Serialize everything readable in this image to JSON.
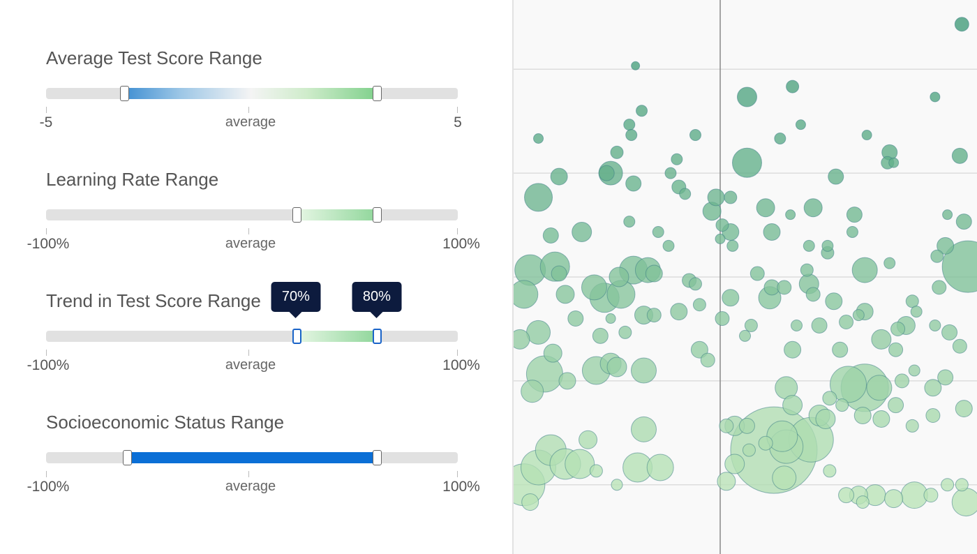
{
  "controls": {
    "score": {
      "title": "Average Test Score Range",
      "axis": [
        "-5",
        "average",
        "5"
      ],
      "range": [
        -3.1,
        3.05
      ]
    },
    "learning": {
      "title": "Learning Rate Range",
      "axis": [
        "-100%",
        "average",
        "100%"
      ],
      "range": [
        22,
        61
      ]
    },
    "trend": {
      "title": "Trend in Test Score Range",
      "axis": [
        "-100%",
        "average",
        "100%"
      ],
      "range": [
        22,
        61
      ],
      "tooltip_low": "70%",
      "tooltip_high": "80%"
    },
    "ses": {
      "title": "Socioeconomic Status Range",
      "axis": [
        "-100%",
        "average",
        "100%"
      ],
      "range": [
        -60.5,
        61
      ]
    }
  },
  "colors": {
    "track": "#e1e1e1",
    "ses_fill": "#0b6fd6",
    "bubble_light": "#b9e3b6",
    "bubble_dark": "#3f9a77",
    "gridline": "#dddddd",
    "axis_line": "#888888"
  },
  "chart_data": {
    "type": "scatter",
    "title": "",
    "xlabel": "",
    "ylabel": "",
    "x_axis_line": 0,
    "grid": "horizontal",
    "xlim": [
      -1,
      1.25
    ],
    "ylim": [
      -0.6,
      1.0
    ],
    "gridlines_y": [
      -0.4,
      -0.1,
      0.2,
      0.5,
      0.8
    ],
    "points": [
      {
        "x": 1.17,
        "y": 0.93,
        "s": 10
      },
      {
        "x": -0.41,
        "y": 0.81,
        "s": 6
      },
      {
        "x": 0.13,
        "y": 0.72,
        "s": 14
      },
      {
        "x": 0.35,
        "y": 0.75,
        "s": 9
      },
      {
        "x": 1.04,
        "y": 0.72,
        "s": 7
      },
      {
        "x": -0.38,
        "y": 0.68,
        "s": 8
      },
      {
        "x": -0.44,
        "y": 0.64,
        "s": 8
      },
      {
        "x": 0.39,
        "y": 0.64,
        "s": 7
      },
      {
        "x": -0.88,
        "y": 0.6,
        "s": 7
      },
      {
        "x": -0.43,
        "y": 0.61,
        "s": 8
      },
      {
        "x": -0.12,
        "y": 0.61,
        "s": 8
      },
      {
        "x": 0.29,
        "y": 0.6,
        "s": 8
      },
      {
        "x": 0.71,
        "y": 0.61,
        "s": 7
      },
      {
        "x": 0.82,
        "y": 0.56,
        "s": 11
      },
      {
        "x": 0.84,
        "y": 0.53,
        "s": 7
      },
      {
        "x": 0.81,
        "y": 0.53,
        "s": 9
      },
      {
        "x": 1.16,
        "y": 0.55,
        "s": 11
      },
      {
        "x": 0.13,
        "y": 0.53,
        "s": 21
      },
      {
        "x": -0.5,
        "y": 0.56,
        "s": 9
      },
      {
        "x": -0.21,
        "y": 0.54,
        "s": 8
      },
      {
        "x": -0.53,
        "y": 0.5,
        "s": 17
      },
      {
        "x": -0.55,
        "y": 0.5,
        "s": 11
      },
      {
        "x": -0.78,
        "y": 0.49,
        "s": 12
      },
      {
        "x": -0.24,
        "y": 0.5,
        "s": 8
      },
      {
        "x": -0.42,
        "y": 0.47,
        "s": 11
      },
      {
        "x": -0.2,
        "y": 0.46,
        "s": 10
      },
      {
        "x": -0.17,
        "y": 0.44,
        "s": 8
      },
      {
        "x": 0.56,
        "y": 0.49,
        "s": 11
      },
      {
        "x": -0.88,
        "y": 0.43,
        "s": 20
      },
      {
        "x": -0.02,
        "y": 0.43,
        "s": 12
      },
      {
        "x": 0.05,
        "y": 0.43,
        "s": 9
      },
      {
        "x": 0.22,
        "y": 0.4,
        "s": 13
      },
      {
        "x": -0.04,
        "y": 0.39,
        "s": 13
      },
      {
        "x": 0.45,
        "y": 0.4,
        "s": 13
      },
      {
        "x": 0.65,
        "y": 0.38,
        "s": 11
      },
      {
        "x": 0.34,
        "y": 0.38,
        "s": 7
      },
      {
        "x": 1.1,
        "y": 0.38,
        "s": 7
      },
      {
        "x": 1.18,
        "y": 0.36,
        "s": 11
      },
      {
        "x": -0.44,
        "y": 0.36,
        "s": 8
      },
      {
        "x": 0.01,
        "y": 0.35,
        "s": 9
      },
      {
        "x": 0.05,
        "y": 0.33,
        "s": 12
      },
      {
        "x": 0.25,
        "y": 0.33,
        "s": 12
      },
      {
        "x": 0.64,
        "y": 0.33,
        "s": 8
      },
      {
        "x": -0.82,
        "y": 0.32,
        "s": 11
      },
      {
        "x": -0.67,
        "y": 0.33,
        "s": 14
      },
      {
        "x": -0.3,
        "y": 0.33,
        "s": 8
      },
      {
        "x": 0.0,
        "y": 0.31,
        "s": 7
      },
      {
        "x": 0.06,
        "y": 0.29,
        "s": 8
      },
      {
        "x": -0.25,
        "y": 0.29,
        "s": 8
      },
      {
        "x": 0.43,
        "y": 0.29,
        "s": 8
      },
      {
        "x": 1.09,
        "y": 0.29,
        "s": 12
      },
      {
        "x": 0.52,
        "y": 0.29,
        "s": 8
      },
      {
        "x": 0.52,
        "y": 0.27,
        "s": 9
      },
      {
        "x": 1.05,
        "y": 0.26,
        "s": 9
      },
      {
        "x": 1.2,
        "y": 0.23,
        "s": 37
      },
      {
        "x": 0.7,
        "y": 0.22,
        "s": 18
      },
      {
        "x": 0.82,
        "y": 0.24,
        "s": 8
      },
      {
        "x": -0.92,
        "y": 0.22,
        "s": 22
      },
      {
        "x": -0.8,
        "y": 0.23,
        "s": 21
      },
      {
        "x": -0.78,
        "y": 0.21,
        "s": 11
      },
      {
        "x": -0.35,
        "y": 0.22,
        "s": 18
      },
      {
        "x": -0.42,
        "y": 0.22,
        "s": 20
      },
      {
        "x": -0.49,
        "y": 0.2,
        "s": 14
      },
      {
        "x": -0.32,
        "y": 0.21,
        "s": 12
      },
      {
        "x": 0.18,
        "y": 0.21,
        "s": 10
      },
      {
        "x": 0.42,
        "y": 0.22,
        "s": 9
      },
      {
        "x": 0.43,
        "y": 0.18,
        "s": 14
      },
      {
        "x": -0.15,
        "y": 0.19,
        "s": 10
      },
      {
        "x": -0.12,
        "y": 0.18,
        "s": 9
      },
      {
        "x": 0.25,
        "y": 0.17,
        "s": 11
      },
      {
        "x": 0.31,
        "y": 0.17,
        "s": 10
      },
      {
        "x": 0.45,
        "y": 0.15,
        "s": 10
      },
      {
        "x": 1.06,
        "y": 0.17,
        "s": 10
      },
      {
        "x": -0.61,
        "y": 0.17,
        "s": 18
      },
      {
        "x": -0.56,
        "y": 0.14,
        "s": 21
      },
      {
        "x": -0.48,
        "y": 0.15,
        "s": 20
      },
      {
        "x": -0.75,
        "y": 0.15,
        "s": 13
      },
      {
        "x": -0.95,
        "y": 0.15,
        "s": 20
      },
      {
        "x": 0.24,
        "y": 0.14,
        "s": 16
      },
      {
        "x": 0.05,
        "y": 0.14,
        "s": 12
      },
      {
        "x": 0.55,
        "y": 0.13,
        "s": 12
      },
      {
        "x": -0.1,
        "y": 0.12,
        "s": 9
      },
      {
        "x": -0.2,
        "y": 0.1,
        "s": 12
      },
      {
        "x": 0.7,
        "y": 0.1,
        "s": 12
      },
      {
        "x": 0.93,
        "y": 0.13,
        "s": 9
      },
      {
        "x": -0.32,
        "y": 0.09,
        "s": 10
      },
      {
        "x": 0.67,
        "y": 0.09,
        "s": 8
      },
      {
        "x": 0.01,
        "y": 0.08,
        "s": 10
      },
      {
        "x": -0.37,
        "y": 0.09,
        "s": 13
      },
      {
        "x": -0.53,
        "y": 0.08,
        "s": 7
      },
      {
        "x": -0.7,
        "y": 0.08,
        "s": 11
      },
      {
        "x": 0.15,
        "y": 0.06,
        "s": 9
      },
      {
        "x": 0.86,
        "y": 0.05,
        "s": 10
      },
      {
        "x": 0.95,
        "y": 0.1,
        "s": 8
      },
      {
        "x": 1.04,
        "y": 0.06,
        "s": 8
      },
      {
        "x": -0.88,
        "y": 0.04,
        "s": 17
      },
      {
        "x": -0.58,
        "y": 0.03,
        "s": 11
      },
      {
        "x": -0.46,
        "y": 0.04,
        "s": 9
      },
      {
        "x": 0.37,
        "y": 0.06,
        "s": 8
      },
      {
        "x": 0.48,
        "y": 0.06,
        "s": 11
      },
      {
        "x": 0.61,
        "y": 0.07,
        "s": 10
      },
      {
        "x": 0.9,
        "y": 0.06,
        "s": 13
      },
      {
        "x": 1.11,
        "y": 0.04,
        "s": 11
      },
      {
        "x": 0.12,
        "y": 0.03,
        "s": 8
      },
      {
        "x": -0.97,
        "y": 0.02,
        "s": 14
      },
      {
        "x": 0.35,
        "y": -0.01,
        "s": 12
      },
      {
        "x": 0.58,
        "y": -0.01,
        "s": 11
      },
      {
        "x": 0.78,
        "y": 0.02,
        "s": 14
      },
      {
        "x": 0.85,
        "y": -0.01,
        "s": 10
      },
      {
        "x": 1.16,
        "y": 0.0,
        "s": 10
      },
      {
        "x": -0.1,
        "y": -0.01,
        "s": 12
      },
      {
        "x": -0.81,
        "y": -0.02,
        "s": 13
      },
      {
        "x": -0.06,
        "y": -0.04,
        "s": 10
      },
      {
        "x": -0.53,
        "y": -0.05,
        "s": 15
      },
      {
        "x": -0.5,
        "y": -0.06,
        "s": 14
      },
      {
        "x": -0.6,
        "y": -0.07,
        "s": 20
      },
      {
        "x": -0.37,
        "y": -0.07,
        "s": 18
      },
      {
        "x": -0.85,
        "y": -0.08,
        "s": 26
      },
      {
        "x": -0.74,
        "y": -0.1,
        "s": 12
      },
      {
        "x": -0.91,
        "y": -0.13,
        "s": 16
      },
      {
        "x": 0.62,
        "y": -0.11,
        "s": 26
      },
      {
        "x": 0.7,
        "y": -0.12,
        "s": 34
      },
      {
        "x": 0.77,
        "y": -0.12,
        "s": 18
      },
      {
        "x": 0.88,
        "y": -0.1,
        "s": 10
      },
      {
        "x": 0.94,
        "y": -0.07,
        "s": 8
      },
      {
        "x": 1.03,
        "y": -0.12,
        "s": 12
      },
      {
        "x": 1.09,
        "y": -0.09,
        "s": 11
      },
      {
        "x": 0.32,
        "y": -0.12,
        "s": 16
      },
      {
        "x": 0.35,
        "y": -0.17,
        "s": 14
      },
      {
        "x": 0.53,
        "y": -0.15,
        "s": 10
      },
      {
        "x": 0.48,
        "y": -0.2,
        "s": 15
      },
      {
        "x": 0.59,
        "y": -0.17,
        "s": 9
      },
      {
        "x": 0.44,
        "y": -0.27,
        "s": 32
      },
      {
        "x": 0.51,
        "y": -0.21,
        "s": 14
      },
      {
        "x": 0.69,
        "y": -0.2,
        "s": 12
      },
      {
        "x": 0.85,
        "y": -0.17,
        "s": 11
      },
      {
        "x": 0.78,
        "y": -0.21,
        "s": 12
      },
      {
        "x": 0.93,
        "y": -0.23,
        "s": 9
      },
      {
        "x": 1.03,
        "y": -0.2,
        "s": 10
      },
      {
        "x": 1.18,
        "y": -0.18,
        "s": 12
      },
      {
        "x": 0.13,
        "y": -0.23,
        "s": 11
      },
      {
        "x": 0.07,
        "y": -0.23,
        "s": 14
      },
      {
        "x": 0.03,
        "y": -0.23,
        "s": 10
      },
      {
        "x": 0.22,
        "y": -0.28,
        "s": 10
      },
      {
        "x": 0.26,
        "y": -0.3,
        "s": 62
      },
      {
        "x": 0.3,
        "y": -0.26,
        "s": 22
      },
      {
        "x": 0.32,
        "y": -0.29,
        "s": 24
      },
      {
        "x": 0.31,
        "y": -0.38,
        "s": 17
      },
      {
        "x": -0.37,
        "y": -0.24,
        "s": 18
      },
      {
        "x": -0.64,
        "y": -0.27,
        "s": 13
      },
      {
        "x": -0.82,
        "y": -0.3,
        "s": 22
      },
      {
        "x": -0.88,
        "y": -0.35,
        "s": 25
      },
      {
        "x": -0.95,
        "y": -0.4,
        "s": 30
      },
      {
        "x": -0.75,
        "y": -0.34,
        "s": 22
      },
      {
        "x": -0.68,
        "y": -0.34,
        "s": 21
      },
      {
        "x": -0.4,
        "y": -0.35,
        "s": 21
      },
      {
        "x": -0.29,
        "y": -0.35,
        "s": 19
      },
      {
        "x": -0.6,
        "y": -0.36,
        "s": 9
      },
      {
        "x": -0.5,
        "y": -0.4,
        "s": 8
      },
      {
        "x": 0.07,
        "y": -0.34,
        "s": 14
      },
      {
        "x": 0.03,
        "y": -0.39,
        "s": 13
      },
      {
        "x": 0.14,
        "y": -0.3,
        "s": 9
      },
      {
        "x": 0.53,
        "y": -0.36,
        "s": 9
      },
      {
        "x": 0.61,
        "y": -0.43,
        "s": 11
      },
      {
        "x": 0.67,
        "y": -0.43,
        "s": 13
      },
      {
        "x": 0.69,
        "y": -0.45,
        "s": 9
      },
      {
        "x": 0.75,
        "y": -0.43,
        "s": 15
      },
      {
        "x": 0.94,
        "y": -0.43,
        "s": 19
      },
      {
        "x": 1.02,
        "y": -0.43,
        "s": 10
      },
      {
        "x": 1.1,
        "y": -0.4,
        "s": 9
      },
      {
        "x": 1.17,
        "y": -0.4,
        "s": 9
      },
      {
        "x": 1.19,
        "y": -0.45,
        "s": 20
      },
      {
        "x": 0.84,
        "y": -0.44,
        "s": 13
      },
      {
        "x": -0.92,
        "y": -0.45,
        "s": 12
      }
    ]
  }
}
